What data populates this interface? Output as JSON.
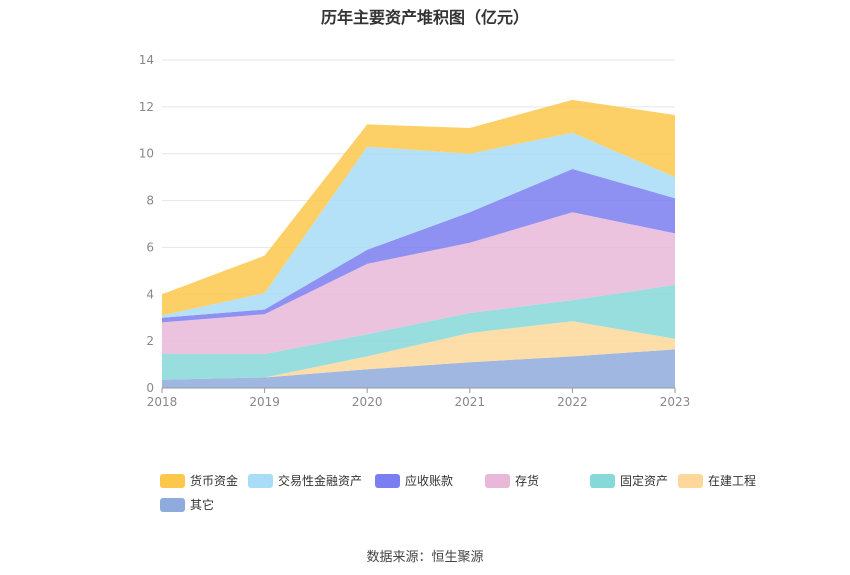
{
  "chart_data": {
    "type": "area",
    "stacked": true,
    "title": "历年主要资产堆积图（亿元）",
    "x": [
      "2018",
      "2019",
      "2020",
      "2021",
      "2022",
      "2023"
    ],
    "ylim": [
      0,
      14
    ],
    "yticks": [
      "0",
      "2",
      "4",
      "6",
      "8",
      "10",
      "12",
      "14"
    ],
    "grid": true,
    "legend_position": "bottom",
    "series": [
      {
        "name": "其它",
        "color": "#8faadc",
        "values": [
          0.35,
          0.45,
          0.8,
          1.1,
          1.35,
          1.65
        ]
      },
      {
        "name": "在建工程",
        "color": "#fdd89a",
        "values": [
          0.0,
          0.0,
          0.55,
          1.25,
          1.5,
          0.45
        ]
      },
      {
        "name": "固定资产",
        "color": "#87d8d8",
        "values": [
          1.1,
          1.0,
          0.95,
          0.85,
          0.9,
          2.3
        ]
      },
      {
        "name": "存货",
        "color": "#e9b8d9",
        "values": [
          1.35,
          1.7,
          3.0,
          3.0,
          3.75,
          2.2
        ]
      },
      {
        "name": "应收账款",
        "color": "#7b7ef0",
        "values": [
          0.2,
          0.2,
          0.6,
          1.3,
          1.85,
          1.5
        ]
      },
      {
        "name": "交易性金融资产",
        "color": "#a8dcf7",
        "values": [
          0.1,
          0.7,
          4.4,
          2.5,
          1.55,
          0.9
        ]
      },
      {
        "name": "货币资金",
        "color": "#fcc84c",
        "values": [
          0.9,
          1.6,
          0.95,
          1.1,
          1.4,
          2.65
        ]
      }
    ]
  },
  "legend_order": [
    "货币资金",
    "交易性金融资产",
    "应收账款",
    "存货",
    "固定资产",
    "在建工程",
    "其它"
  ],
  "source": "数据来源：恒生聚源"
}
